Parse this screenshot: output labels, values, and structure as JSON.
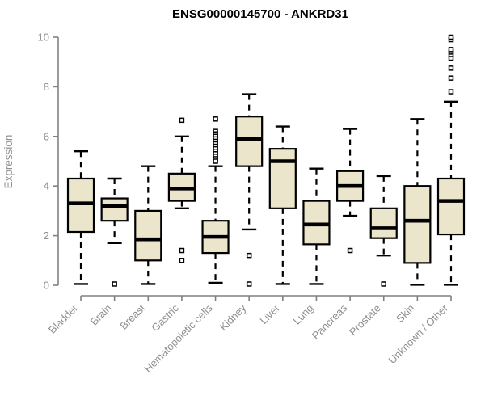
{
  "chart_data": {
    "type": "boxplot",
    "title": "ENSG00000145700 - ANKRD31",
    "ylabel": "Expression",
    "xlabel": "",
    "ylim": [
      0,
      10
    ],
    "yticks": [
      0,
      2,
      4,
      6,
      8,
      10
    ],
    "grid": false,
    "legend": "none",
    "categories": [
      "Bladder",
      "Brain",
      "Breast",
      "Gastric",
      "Hematopoietic cells",
      "Kidney",
      "Liver",
      "Lung",
      "Pancreas",
      "Prostate",
      "Skin",
      "Unknown / Other"
    ],
    "series": [
      {
        "name": "Bladder",
        "whisker_low": 0.05,
        "q1": 2.15,
        "median": 3.3,
        "q3": 4.3,
        "whisker_high": 5.4,
        "outliers": []
      },
      {
        "name": "Brain",
        "whisker_low": 1.7,
        "q1": 2.6,
        "median": 3.2,
        "q3": 3.5,
        "whisker_high": 4.3,
        "outliers": [
          0.05
        ]
      },
      {
        "name": "Breast",
        "whisker_low": 0.05,
        "q1": 1.0,
        "median": 1.85,
        "q3": 3.0,
        "whisker_high": 4.8,
        "outliers": []
      },
      {
        "name": "Gastric",
        "whisker_low": 3.1,
        "q1": 3.4,
        "median": 3.9,
        "q3": 4.5,
        "whisker_high": 6.0,
        "outliers": [
          6.65,
          1.4,
          1.0
        ]
      },
      {
        "name": "Hematopoietic cells",
        "whisker_low": 0.1,
        "q1": 1.3,
        "median": 1.95,
        "q3": 2.6,
        "whisker_high": 4.8,
        "outliers": [
          6.7,
          6.2,
          6.1,
          6.0,
          5.9,
          5.8,
          5.7,
          5.6,
          5.5,
          5.4,
          5.3,
          5.2,
          5.1,
          5.0
        ]
      },
      {
        "name": "Kidney",
        "whisker_low": 2.25,
        "q1": 4.8,
        "median": 5.9,
        "q3": 6.8,
        "whisker_high": 7.7,
        "outliers": [
          1.2,
          0.05
        ]
      },
      {
        "name": "Liver",
        "whisker_low": 0.05,
        "q1": 3.1,
        "median": 5.0,
        "q3": 5.5,
        "whisker_high": 6.4,
        "outliers": []
      },
      {
        "name": "Lung",
        "whisker_low": 0.05,
        "q1": 1.65,
        "median": 2.45,
        "q3": 3.4,
        "whisker_high": 4.7,
        "outliers": []
      },
      {
        "name": "Pancreas",
        "whisker_low": 2.8,
        "q1": 3.4,
        "median": 4.0,
        "q3": 4.6,
        "whisker_high": 6.3,
        "outliers": [
          1.4
        ]
      },
      {
        "name": "Prostate",
        "whisker_low": 1.2,
        "q1": 1.9,
        "median": 2.3,
        "q3": 3.1,
        "whisker_high": 4.4,
        "outliers": [
          0.05
        ]
      },
      {
        "name": "Skin",
        "whisker_low": 0.02,
        "q1": 0.9,
        "median": 2.6,
        "q3": 4.0,
        "whisker_high": 6.7,
        "outliers": []
      },
      {
        "name": "Unknown / Other",
        "whisker_low": 0.02,
        "q1": 2.05,
        "median": 3.4,
        "q3": 4.3,
        "whisker_high": 7.4,
        "outliers": [
          7.8,
          8.35,
          8.75,
          9.15,
          9.3,
          9.4,
          9.5,
          9.9,
          10.0
        ]
      }
    ],
    "colors": {
      "box_fill": "#EBE5CB",
      "box_stroke": "#000000",
      "median": "#000000",
      "whisker": "#000000",
      "outlier": "#000000",
      "axis": "#808080",
      "tick_label": "#8e8e8e",
      "title": "#000000",
      "background": "#ffffff"
    }
  }
}
